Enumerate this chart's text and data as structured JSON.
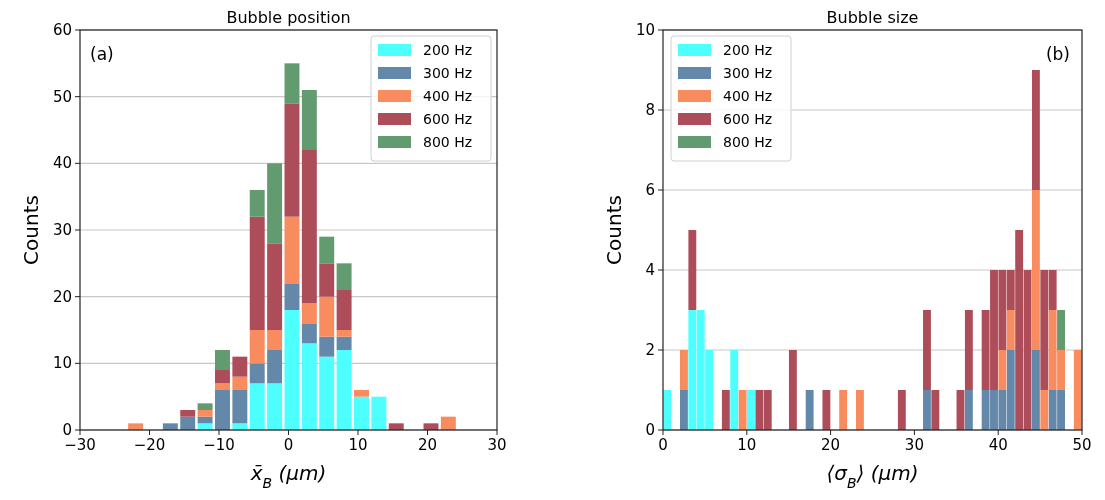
{
  "chart_data": [
    {
      "type": "bar",
      "title": "Bubble position",
      "xlabel": "x̄$_{B}$ (μm)",
      "ylabel": "Counts",
      "stacked": true,
      "grid": "y",
      "legend": "top right",
      "annotations": [
        "(a)"
      ],
      "x": [
        -22,
        -19.5,
        -17,
        -14.5,
        -12,
        -9.5,
        -7,
        -4.5,
        -2,
        0.5,
        3,
        5.5,
        8,
        10.5,
        13,
        15.5,
        18,
        20.5,
        23
      ],
      "xlim": [
        -30,
        30
      ],
      "xticks": [
        {
          "value": -30,
          "label": "−30"
        },
        {
          "value": -20,
          "label": "−20"
        },
        {
          "value": -10,
          "label": "−10"
        },
        0,
        10,
        20,
        30
      ],
      "ylim": [
        0,
        60
      ],
      "yticks": [
        0,
        10,
        20,
        30,
        40,
        50,
        60
      ],
      "series": [
        {
          "name": "200 Hz",
          "color": "#4dffff",
          "values": [
            0,
            0,
            0,
            0,
            1,
            0,
            1,
            7,
            7,
            18,
            13,
            11,
            12,
            5,
            5,
            0,
            0,
            0,
            0
          ]
        },
        {
          "name": "300 Hz",
          "color": "#6488aa",
          "values": [
            0,
            0,
            1,
            2,
            1,
            6,
            5,
            3,
            5,
            4,
            3,
            3,
            2,
            0,
            0,
            0,
            0,
            0,
            0
          ]
        },
        {
          "name": "400 Hz",
          "color": "#f88c5e",
          "values": [
            1,
            0,
            0,
            0,
            1,
            1,
            2,
            5,
            3,
            10,
            3,
            6,
            1,
            1,
            0,
            0,
            0,
            0,
            2
          ]
        },
        {
          "name": "600 Hz",
          "color": "#ae4d5a",
          "values": [
            0,
            0,
            0,
            1,
            0,
            2,
            3,
            17,
            13,
            17,
            23,
            5,
            6,
            0,
            0,
            1,
            0,
            1,
            0
          ]
        },
        {
          "name": "800 Hz",
          "color": "#629b6f",
          "values": [
            0,
            0,
            0,
            0,
            1,
            3,
            0,
            4,
            12,
            6,
            9,
            4,
            4,
            0,
            0,
            0,
            0,
            0,
            0
          ]
        }
      ]
    },
    {
      "type": "bar",
      "title": "Bubble size",
      "xlabel": "⟨σ$_{B}$⟩ (μm)",
      "ylabel": "Counts",
      "stacked": true,
      "grid": "y",
      "legend": "top left",
      "annotations": [
        "(b)"
      ],
      "x": [
        0.5,
        1.5,
        2.5,
        3.5,
        4.5,
        5.5,
        6.5,
        7.5,
        8.5,
        9.5,
        10.5,
        11.5,
        12.5,
        13.5,
        14.5,
        15.5,
        16.5,
        17.5,
        18.5,
        19.5,
        20.5,
        21.5,
        22.5,
        23.5,
        24.5,
        25.5,
        26.5,
        27.5,
        28.5,
        29.5,
        30.5,
        31.5,
        32.5,
        33.5,
        34.5,
        35.5,
        36.5,
        37.5,
        38.5,
        39.5,
        40.5,
        41.5,
        42.5,
        43.5,
        44.5,
        45.5,
        46.5,
        47.5,
        48.5,
        49.5
      ],
      "xlim": [
        0,
        50
      ],
      "xticks": [
        0,
        10,
        20,
        30,
        40,
        50
      ],
      "ylim": [
        0,
        10
      ],
      "yticks": [
        0,
        2,
        4,
        6,
        8,
        10
      ],
      "series": [
        {
          "name": "200 Hz",
          "color": "#4dffff",
          "values": [
            1,
            0,
            0,
            3,
            3,
            2,
            0,
            0,
            2,
            0,
            1,
            0,
            0,
            0,
            0,
            0,
            0,
            0,
            0,
            0,
            0,
            0,
            0,
            0,
            0,
            0,
            0,
            0,
            0,
            0,
            0,
            0,
            0,
            0,
            0,
            0,
            0,
            0,
            0,
            0,
            0,
            0,
            0,
            0,
            0,
            0,
            0,
            0,
            0,
            0
          ]
        },
        {
          "name": "300 Hz",
          "color": "#6488aa",
          "values": [
            0,
            0,
            1,
            0,
            0,
            0,
            0,
            0,
            0,
            0,
            0,
            0,
            0,
            0,
            0,
            0,
            0,
            1,
            0,
            0,
            0,
            0,
            0,
            0,
            0,
            0,
            0,
            0,
            0,
            0,
            0,
            1,
            0,
            0,
            0,
            0,
            1,
            0,
            1,
            1,
            1,
            2,
            0,
            0,
            2,
            0,
            1,
            1,
            0,
            0
          ]
        },
        {
          "name": "400 Hz",
          "color": "#f88c5e",
          "values": [
            0,
            0,
            1,
            0,
            0,
            0,
            0,
            0,
            0,
            1,
            0,
            0,
            0,
            0,
            0,
            0,
            0,
            0,
            0,
            0,
            0,
            1,
            0,
            1,
            0,
            0,
            0,
            0,
            0,
            0,
            0,
            0,
            0,
            0,
            0,
            0,
            0,
            0,
            0,
            0,
            1,
            1,
            0,
            0,
            4,
            1,
            2,
            1,
            0,
            2
          ]
        },
        {
          "name": "600 Hz",
          "color": "#ae4d5a",
          "values": [
            0,
            0,
            0,
            2,
            0,
            0,
            0,
            1,
            0,
            0,
            0,
            1,
            1,
            0,
            0,
            2,
            0,
            0,
            0,
            1,
            0,
            0,
            0,
            0,
            0,
            0,
            0,
            0,
            1,
            0,
            0,
            2,
            1,
            0,
            0,
            1,
            2,
            0,
            2,
            3,
            2,
            1,
            5,
            4,
            3,
            3,
            1,
            0,
            0,
            0
          ]
        },
        {
          "name": "800 Hz",
          "color": "#629b6f",
          "values": [
            0,
            0,
            0,
            0,
            0,
            0,
            0,
            0,
            0,
            0,
            0,
            0,
            0,
            0,
            0,
            0,
            0,
            0,
            0,
            0,
            0,
            0,
            0,
            0,
            0,
            0,
            0,
            0,
            0,
            0,
            0,
            0,
            0,
            0,
            0,
            0,
            0,
            0,
            0,
            0,
            0,
            0,
            0,
            0,
            0,
            0,
            0,
            1,
            0,
            0
          ]
        }
      ]
    }
  ]
}
